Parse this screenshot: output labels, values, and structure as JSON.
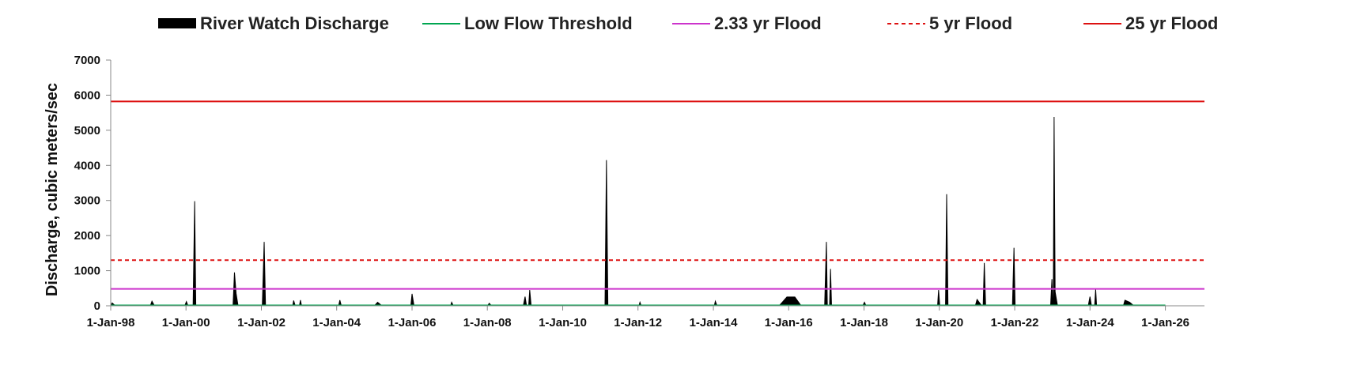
{
  "chart_data": {
    "type": "area",
    "title": "",
    "xlabel": "",
    "ylabel": "Discharge, cubic meters/sec",
    "ylim": [
      0,
      7000
    ],
    "xlim": [
      "1998-01-01",
      "2027-01-15"
    ],
    "yticks": [
      0,
      1000,
      2000,
      3000,
      4000,
      5000,
      6000,
      7000
    ],
    "xticks": [
      {
        "date": "1998-01-01",
        "label": "1-Jan-98"
      },
      {
        "date": "2000-01-01",
        "label": "1-Jan-00"
      },
      {
        "date": "2002-01-01",
        "label": "1-Jan-02"
      },
      {
        "date": "2004-01-01",
        "label": "1-Jan-04"
      },
      {
        "date": "2006-01-01",
        "label": "1-Jan-06"
      },
      {
        "date": "2008-01-01",
        "label": "1-Jan-08"
      },
      {
        "date": "2010-01-01",
        "label": "1-Jan-10"
      },
      {
        "date": "2012-01-01",
        "label": "1-Jan-12"
      },
      {
        "date": "2014-01-01",
        "label": "1-Jan-14"
      },
      {
        "date": "2016-01-01",
        "label": "1-Jan-16"
      },
      {
        "date": "2018-01-01",
        "label": "1-Jan-18"
      },
      {
        "date": "2020-01-01",
        "label": "1-Jan-20"
      },
      {
        "date": "2022-01-01",
        "label": "1-Jan-22"
      },
      {
        "date": "2024-01-01",
        "label": "1-Jan-24"
      },
      {
        "date": "2026-01-01",
        "label": "1-Jan-26"
      }
    ],
    "grid": false,
    "legend_position": "top",
    "series": [
      {
        "name": "River Watch Discharge",
        "kind": "area",
        "color": "#000000",
        "points": [
          [
            "1998-01-01",
            0
          ],
          [
            "1998-01-15",
            80
          ],
          [
            "1998-02-15",
            0
          ],
          [
            "1999-01-20",
            0
          ],
          [
            "1999-02-05",
            130
          ],
          [
            "1999-03-01",
            0
          ],
          [
            "1999-12-20",
            0
          ],
          [
            "2000-01-05",
            120
          ],
          [
            "2000-01-20",
            0
          ],
          [
            "2000-03-10",
            0
          ],
          [
            "2000-03-25",
            2980
          ],
          [
            "2000-04-05",
            0
          ],
          [
            "2001-04-01",
            0
          ],
          [
            "2001-04-15",
            950
          ],
          [
            "2001-05-01",
            350
          ],
          [
            "2001-05-20",
            0
          ],
          [
            "2002-01-10",
            0
          ],
          [
            "2002-01-28",
            1820
          ],
          [
            "2002-02-10",
            0
          ],
          [
            "2002-11-01",
            0
          ],
          [
            "2002-11-10",
            150
          ],
          [
            "2002-11-25",
            0
          ],
          [
            "2003-01-05",
            0
          ],
          [
            "2003-01-15",
            160
          ],
          [
            "2003-01-25",
            0
          ],
          [
            "2004-01-20",
            0
          ],
          [
            "2004-02-01",
            160
          ],
          [
            "2004-02-15",
            0
          ],
          [
            "2005-01-01",
            0
          ],
          [
            "2005-02-01",
            100
          ],
          [
            "2005-03-15",
            0
          ],
          [
            "2005-12-20",
            0
          ],
          [
            "2006-01-01",
            340
          ],
          [
            "2006-01-20",
            0
          ],
          [
            "2007-01-10",
            0
          ],
          [
            "2007-01-20",
            100
          ],
          [
            "2007-02-05",
            0
          ],
          [
            "2008-01-01",
            0
          ],
          [
            "2008-01-20",
            70
          ],
          [
            "2008-02-10",
            0
          ],
          [
            "2008-12-15",
            0
          ],
          [
            "2009-01-01",
            260
          ],
          [
            "2009-01-15",
            0
          ],
          [
            "2009-02-05",
            0
          ],
          [
            "2009-02-15",
            450
          ],
          [
            "2009-03-01",
            0
          ],
          [
            "2011-02-15",
            0
          ],
          [
            "2011-03-01",
            4150
          ],
          [
            "2011-03-15",
            0
          ],
          [
            "2012-01-10",
            0
          ],
          [
            "2012-01-20",
            100
          ],
          [
            "2012-02-01",
            0
          ],
          [
            "2014-01-10",
            0
          ],
          [
            "2014-01-20",
            130
          ],
          [
            "2014-02-05",
            0
          ],
          [
            "2015-10-01",
            0
          ],
          [
            "2015-12-15",
            250
          ],
          [
            "2016-03-01",
            250
          ],
          [
            "2016-05-01",
            0
          ],
          [
            "2016-12-15",
            0
          ],
          [
            "2017-01-01",
            1820
          ],
          [
            "2017-01-10",
            0
          ],
          [
            "2017-02-01",
            0
          ],
          [
            "2017-02-10",
            1050
          ],
          [
            "2017-02-20",
            0
          ],
          [
            "2017-12-20",
            0
          ],
          [
            "2018-01-05",
            100
          ],
          [
            "2018-01-20",
            0
          ],
          [
            "2019-12-15",
            0
          ],
          [
            "2019-12-25",
            450
          ],
          [
            "2020-01-05",
            0
          ],
          [
            "2020-03-01",
            0
          ],
          [
            "2020-03-12",
            3180
          ],
          [
            "2020-03-25",
            0
          ],
          [
            "2020-12-15",
            0
          ],
          [
            "2021-01-01",
            180
          ],
          [
            "2021-02-15",
            0
          ],
          [
            "2021-03-01",
            0
          ],
          [
            "2021-03-12",
            1220
          ],
          [
            "2021-03-25",
            0
          ],
          [
            "2021-12-10",
            0
          ],
          [
            "2021-12-25",
            1650
          ],
          [
            "2022-01-05",
            0
          ],
          [
            "2022-12-15",
            0
          ],
          [
            "2022-12-28",
            760
          ],
          [
            "2023-01-05",
            0
          ],
          [
            "2023-01-10",
            0
          ],
          [
            "2023-01-18",
            5380
          ],
          [
            "2023-01-28",
            400
          ],
          [
            "2023-02-20",
            0
          ],
          [
            "2023-12-15",
            0
          ],
          [
            "2024-01-01",
            260
          ],
          [
            "2024-01-15",
            0
          ],
          [
            "2024-02-15",
            0
          ],
          [
            "2024-02-25",
            470
          ],
          [
            "2024-03-05",
            0
          ],
          [
            "2024-11-20",
            0
          ],
          [
            "2024-12-05",
            160
          ],
          [
            "2025-01-20",
            100
          ],
          [
            "2025-03-01",
            0
          ]
        ]
      },
      {
        "name": "Low Flow Threshold",
        "kind": "line",
        "value": 10,
        "color": "#00a651",
        "dash": "none",
        "x_start": "1998-01-01",
        "x_end": "2026-01-01"
      },
      {
        "name": "2.33 yr Flood",
        "kind": "hline",
        "value": 480,
        "color": "#cc33cc",
        "dash": "none"
      },
      {
        "name": "5 yr Flood",
        "kind": "hline",
        "value": 1300,
        "color": "#dd1111",
        "dash": "dashed"
      },
      {
        "name": "25 yr Flood",
        "kind": "hline",
        "value": 5820,
        "color": "#dd1111",
        "dash": "none"
      }
    ]
  }
}
